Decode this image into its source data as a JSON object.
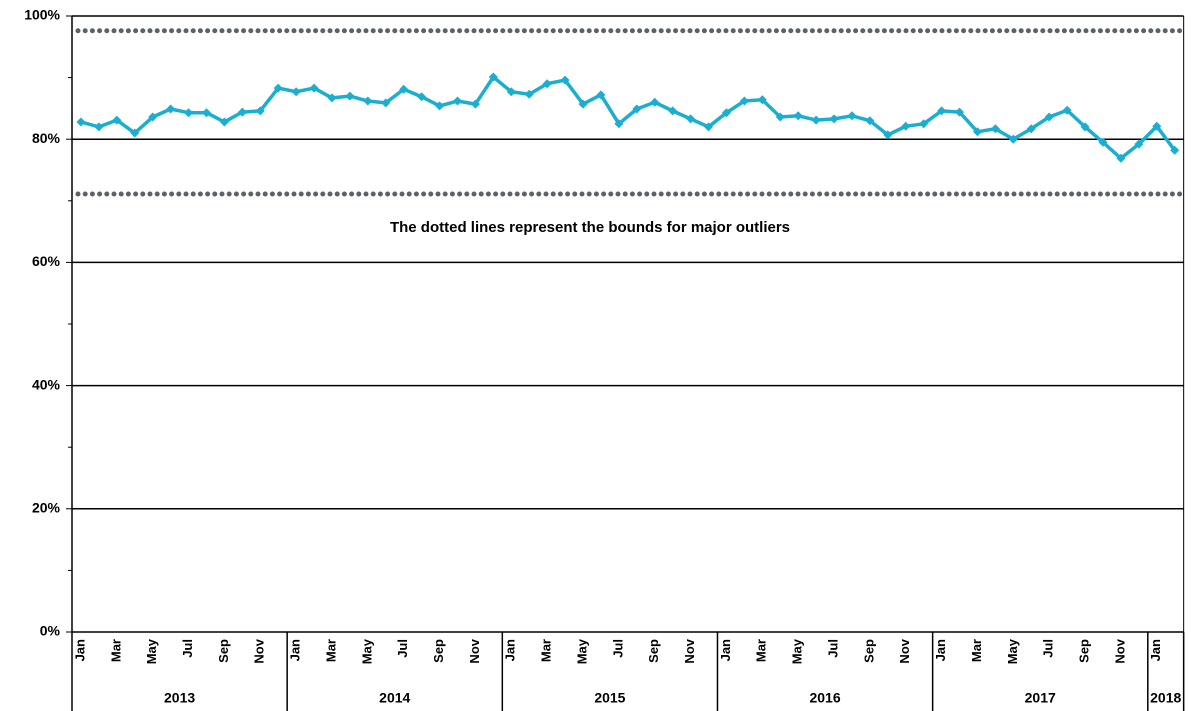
{
  "chart_data": {
    "type": "line",
    "annotation": "The dotted lines represent the bounds for major outliers",
    "categories": [
      "Jan",
      null,
      "Mar",
      null,
      "May",
      null,
      "Jul",
      null,
      "Sep",
      null,
      "Nov",
      null,
      "Jan",
      null,
      "Mar",
      null,
      "May",
      null,
      "Jul",
      null,
      "Sep",
      null,
      "Nov",
      null,
      "Jan",
      null,
      "Mar",
      null,
      "May",
      null,
      "Jul",
      null,
      "Sep",
      null,
      "Nov",
      null,
      "Jan",
      null,
      "Mar",
      null,
      "May",
      null,
      "Jul",
      null,
      "Sep",
      null,
      "Nov",
      null,
      "Jan",
      null,
      "Mar",
      null,
      "May",
      null,
      "Jul",
      null,
      "Sep",
      null,
      "Nov",
      null,
      "Jan",
      null
    ],
    "x_groups": [
      {
        "label": "2013",
        "count": 12
      },
      {
        "label": "2014",
        "count": 12
      },
      {
        "label": "2015",
        "count": 12
      },
      {
        "label": "2016",
        "count": 12
      },
      {
        "label": "2017",
        "count": 12
      },
      {
        "label": "2018",
        "count": 2
      }
    ],
    "series": [
      {
        "color": "#1aaed0",
        "values": [
          82.8,
          82.0,
          83.1,
          81.0,
          83.6,
          84.9,
          84.3,
          84.3,
          82.8,
          84.4,
          84.6,
          88.3,
          87.7,
          88.3,
          86.7,
          87.0,
          86.2,
          85.9,
          88.1,
          86.9,
          85.4,
          86.2,
          85.7,
          90.1,
          87.7,
          87.3,
          89.0,
          89.6,
          85.7,
          87.2,
          82.5,
          84.9,
          86.0,
          84.6,
          83.3,
          82.0,
          84.3,
          86.2,
          86.4,
          83.6,
          83.8,
          83.1,
          83.3,
          83.8,
          83.0,
          80.7,
          82.1,
          82.5,
          84.6,
          84.4,
          81.2,
          81.7,
          80.0,
          81.7,
          83.6,
          84.7,
          82.0,
          79.5,
          76.9,
          79.2,
          82.1,
          78.2
        ]
      }
    ],
    "reference_lines": {
      "color": "#5b6168",
      "values": [
        97.6,
        71.1
      ]
    },
    "ylim": [
      0,
      100
    ],
    "yticks": [
      {
        "value": 0,
        "label": "0%"
      },
      {
        "value": 20,
        "label": "20%"
      },
      {
        "value": 40,
        "label": "40%"
      },
      {
        "value": 60,
        "label": "60%"
      },
      {
        "value": 80,
        "label": "80%"
      },
      {
        "value": 100,
        "label": "100%"
      }
    ],
    "yminorticks": [
      10,
      30,
      50,
      70,
      90
    ],
    "grid": true
  }
}
